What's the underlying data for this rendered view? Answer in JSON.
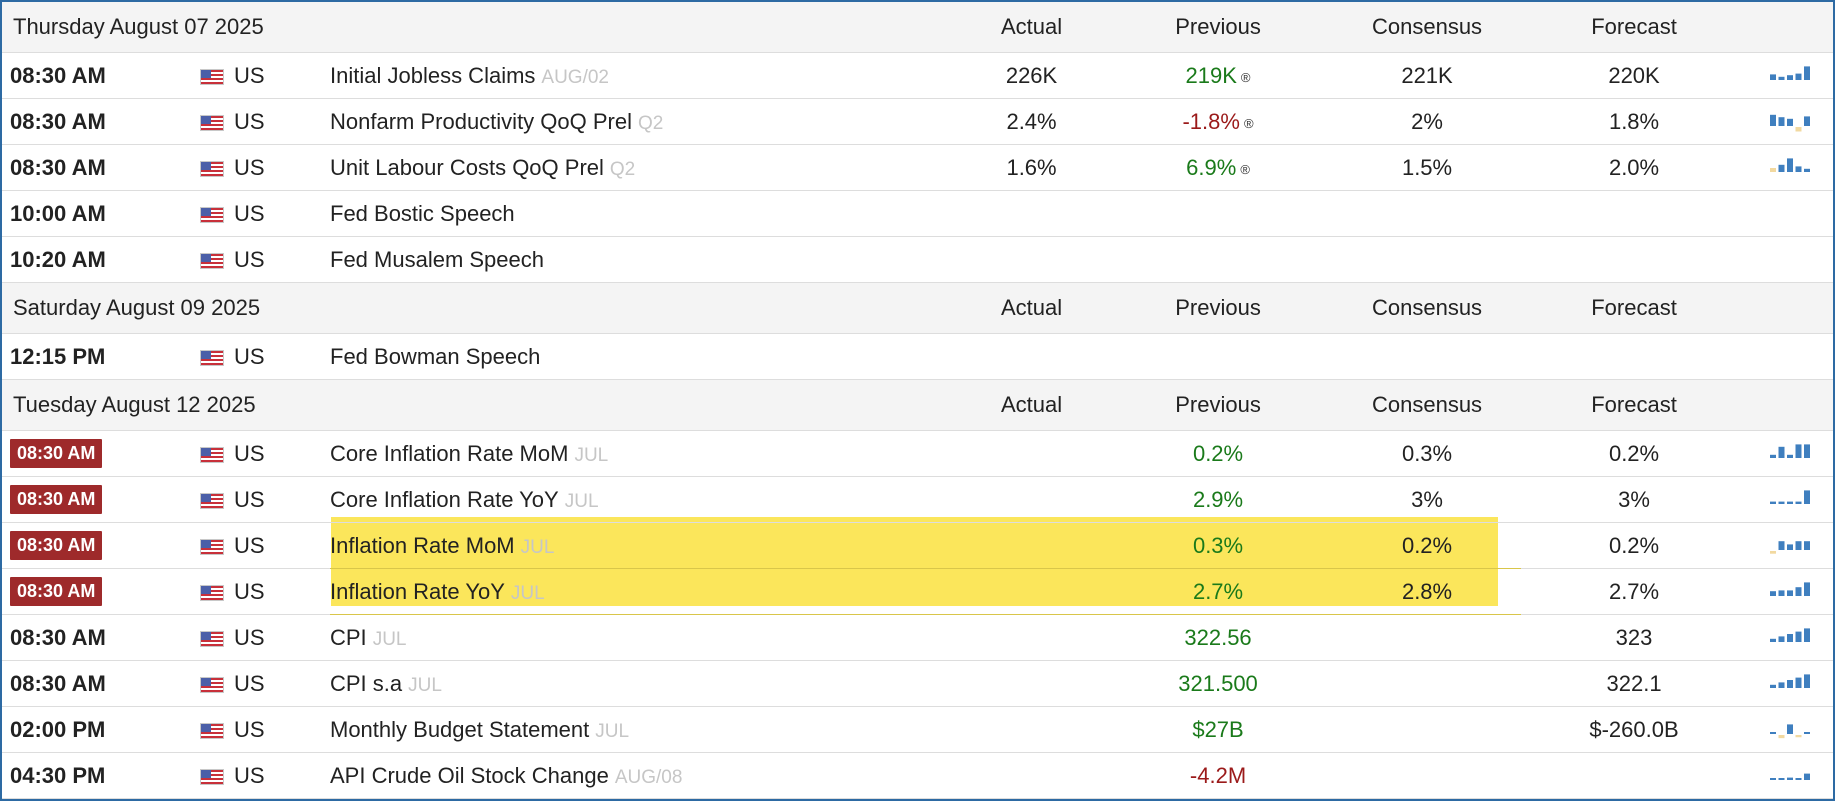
{
  "header_cols": {
    "actual": "Actual",
    "previous": "Previous",
    "consensus": "Consensus",
    "forecast": "Forecast"
  },
  "days": [
    {
      "label": "Thursday August 07 2025",
      "events": [
        {
          "time": "08:30 AM",
          "badge": false,
          "country": "US",
          "name": "Initial Jobless Claims",
          "ref": "AUG/02",
          "actual": "226K",
          "previous": "219K",
          "previous_tone": "pos",
          "revised": true,
          "consensus": "221K",
          "forecast": "220K",
          "spark": [
            0.35,
            0.2,
            0.3,
            0.4,
            0.85
          ],
          "spark_colors": [
            "#3f7fbf",
            "#3f7fbf",
            "#3f7fbf",
            "#3f7fbf",
            "#3f7fbf"
          ]
        },
        {
          "time": "08:30 AM",
          "badge": false,
          "country": "US",
          "name": "Nonfarm Productivity QoQ Prel",
          "ref": "Q2",
          "actual": "2.4%",
          "previous": "-1.8%",
          "previous_tone": "neg",
          "revised": true,
          "consensus": "2%",
          "forecast": "1.8%",
          "spark": [
            0.7,
            0.55,
            0.45,
            -0.5,
            0.6
          ],
          "spark_colors": [
            "#3f7fbf",
            "#3f7fbf",
            "#3f7fbf",
            "#f2d9a0",
            "#3f7fbf"
          ]
        },
        {
          "time": "08:30 AM",
          "badge": false,
          "country": "US",
          "name": "Unit Labour Costs QoQ Prel",
          "ref": "Q2",
          "actual": "1.6%",
          "previous": "6.9%",
          "previous_tone": "pos",
          "revised": true,
          "consensus": "1.5%",
          "forecast": "2.0%",
          "spark": [
            0.25,
            0.45,
            0.85,
            0.35,
            0.2
          ],
          "spark_colors": [
            "#f2d9a0",
            "#3f7fbf",
            "#3f7fbf",
            "#3f7fbf",
            "#3f7fbf"
          ]
        },
        {
          "time": "10:00 AM",
          "badge": false,
          "country": "US",
          "name": "Fed Bostic Speech",
          "ref": "",
          "actual": "",
          "previous": "",
          "previous_tone": "",
          "revised": false,
          "consensus": "",
          "forecast": "",
          "spark": [],
          "spark_colors": []
        },
        {
          "time": "10:20 AM",
          "badge": false,
          "country": "US",
          "name": "Fed Musalem Speech",
          "ref": "",
          "actual": "",
          "previous": "",
          "previous_tone": "",
          "revised": false,
          "consensus": "",
          "forecast": "",
          "spark": [],
          "spark_colors": []
        }
      ]
    },
    {
      "label": "Saturday August 09 2025",
      "events": [
        {
          "time": "12:15 PM",
          "badge": false,
          "country": "US",
          "name": "Fed Bowman Speech",
          "ref": "",
          "actual": "",
          "previous": "",
          "previous_tone": "",
          "revised": false,
          "consensus": "",
          "forecast": "",
          "spark": [],
          "spark_colors": []
        }
      ]
    },
    {
      "label": "Tuesday August 12 2025",
      "events": [
        {
          "time": "08:30 AM",
          "badge": true,
          "country": "US",
          "name": "Core Inflation Rate MoM",
          "ref": "JUL",
          "actual": "",
          "previous": "0.2%",
          "previous_tone": "pos",
          "revised": false,
          "consensus": "0.3%",
          "forecast": "0.2%",
          "spark": [
            0.2,
            0.7,
            0.2,
            0.85,
            0.85
          ],
          "spark_colors": [
            "#3f7fbf",
            "#3f7fbf",
            "#3f7fbf",
            "#3f7fbf",
            "#3f7fbf"
          ]
        },
        {
          "time": "08:30 AM",
          "badge": true,
          "country": "US",
          "name": "Core Inflation Rate YoY",
          "ref": "JUL",
          "actual": "",
          "previous": "2.9%",
          "previous_tone": "pos",
          "revised": false,
          "consensus": "3%",
          "forecast": "3%",
          "spark": [
            0.15,
            0.15,
            0.15,
            0.15,
            0.85
          ],
          "spark_colors": [
            "#3f7fbf",
            "#3f7fbf",
            "#3f7fbf",
            "#3f7fbf",
            "#3f7fbf"
          ]
        },
        {
          "time": "08:30 AM",
          "badge": true,
          "country": "US",
          "name": "Inflation Rate MoM",
          "ref": "JUL",
          "actual": "",
          "previous": "0.3%",
          "previous_tone": "pos",
          "revised": false,
          "consensus": "0.2%",
          "forecast": "0.2%",
          "spark": [
            -0.3,
            0.55,
            0.35,
            0.55,
            0.55
          ],
          "spark_colors": [
            "#f2d9a0",
            "#3f7fbf",
            "#3f7fbf",
            "#3f7fbf",
            "#3f7fbf"
          ]
        },
        {
          "time": "08:30 AM",
          "badge": true,
          "country": "US",
          "name": "Inflation Rate YoY",
          "ref": "JUL",
          "actual": "",
          "previous": "2.7%",
          "previous_tone": "pos",
          "revised": false,
          "consensus": "2.8%",
          "forecast": "2.7%",
          "spark": [
            0.3,
            0.35,
            0.35,
            0.55,
            0.85
          ],
          "spark_colors": [
            "#3f7fbf",
            "#3f7fbf",
            "#3f7fbf",
            "#3f7fbf",
            "#3f7fbf"
          ]
        },
        {
          "time": "08:30 AM",
          "badge": false,
          "country": "US",
          "name": "CPI",
          "ref": "JUL",
          "actual": "",
          "previous": "322.56",
          "previous_tone": "pos",
          "revised": false,
          "consensus": "",
          "forecast": "323",
          "spark": [
            0.2,
            0.35,
            0.5,
            0.65,
            0.85
          ],
          "spark_colors": [
            "#3f7fbf",
            "#3f7fbf",
            "#3f7fbf",
            "#3f7fbf",
            "#3f7fbf"
          ]
        },
        {
          "time": "08:30 AM",
          "badge": false,
          "country": "US",
          "name": "CPI s.a",
          "ref": "JUL",
          "actual": "",
          "previous": "321.500",
          "previous_tone": "pos",
          "revised": false,
          "consensus": "",
          "forecast": "322.1",
          "spark": [
            0.2,
            0.35,
            0.5,
            0.65,
            0.85
          ],
          "spark_colors": [
            "#3f7fbf",
            "#3f7fbf",
            "#3f7fbf",
            "#3f7fbf",
            "#3f7fbf"
          ]
        },
        {
          "time": "02:00 PM",
          "badge": false,
          "country": "US",
          "name": "Monthly Budget Statement",
          "ref": "JUL",
          "actual": "",
          "previous": "$27B",
          "previous_tone": "pos",
          "revised": false,
          "consensus": "",
          "forecast": "$-260.0B",
          "spark": [
            0.12,
            -0.35,
            0.6,
            -0.25,
            0.12
          ],
          "spark_colors": [
            "#3f7fbf",
            "#f2d9a0",
            "#3f7fbf",
            "#f2d9a0",
            "#3f7fbf"
          ]
        },
        {
          "time": "04:30 PM",
          "badge": false,
          "country": "US",
          "name": "API Crude Oil Stock Change",
          "ref": "AUG/08",
          "actual": "",
          "previous": "-4.2M",
          "previous_tone": "neg",
          "revised": false,
          "consensus": "",
          "forecast": "",
          "spark": [
            0.1,
            0.1,
            0.15,
            0.1,
            0.4
          ],
          "spark_colors": [
            "#3f7fbf",
            "#3f7fbf",
            "#3f7fbf",
            "#3f7fbf",
            "#3f7fbf"
          ]
        }
      ]
    }
  ]
}
